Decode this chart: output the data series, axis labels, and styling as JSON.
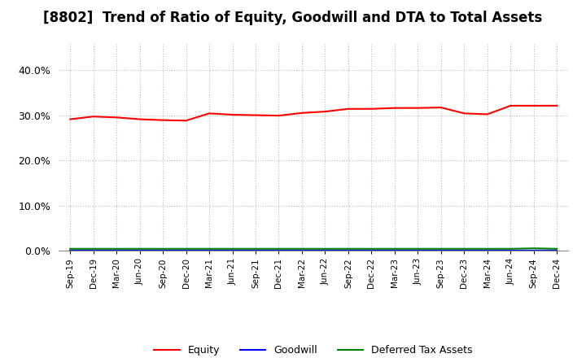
{
  "title": "[8802]  Trend of Ratio of Equity, Goodwill and DTA to Total Assets",
  "x_labels": [
    "Sep-19",
    "Dec-19",
    "Mar-20",
    "Jun-20",
    "Sep-20",
    "Dec-20",
    "Mar-21",
    "Jun-21",
    "Sep-21",
    "Dec-21",
    "Mar-22",
    "Jun-22",
    "Sep-22",
    "Dec-22",
    "Mar-23",
    "Jun-23",
    "Sep-23",
    "Dec-23",
    "Mar-24",
    "Jun-24",
    "Sep-24",
    "Dec-24"
  ],
  "equity": [
    0.291,
    0.297,
    0.295,
    0.291,
    0.289,
    0.288,
    0.304,
    0.301,
    0.3,
    0.299,
    0.305,
    0.308,
    0.314,
    0.314,
    0.316,
    0.316,
    0.317,
    0.304,
    0.302,
    0.321,
    0.321,
    0.321
  ],
  "goodwill": [
    0.0005,
    0.0005,
    0.0005,
    0.0005,
    0.0005,
    0.0005,
    0.0005,
    0.0005,
    0.0005,
    0.0005,
    0.0005,
    0.0005,
    0.0005,
    0.0005,
    0.0005,
    0.0005,
    0.0005,
    0.0005,
    0.0005,
    0.0005,
    0.0005,
    0.0005
  ],
  "dta": [
    0.004,
    0.004,
    0.004,
    0.004,
    0.004,
    0.004,
    0.004,
    0.004,
    0.004,
    0.004,
    0.004,
    0.004,
    0.004,
    0.004,
    0.004,
    0.004,
    0.004,
    0.004,
    0.004,
    0.004,
    0.005,
    0.004
  ],
  "equity_color": "#ff0000",
  "goodwill_color": "#0000ff",
  "dta_color": "#008000",
  "ylim": [
    0.0,
    0.46
  ],
  "yticks": [
    0.0,
    0.1,
    0.2,
    0.3,
    0.4
  ],
  "background_color": "#ffffff",
  "plot_bg_color": "#ffffff",
  "grid_color": "#bbbbbb",
  "title_fontsize": 12,
  "legend_labels": [
    "Equity",
    "Goodwill",
    "Deferred Tax Assets"
  ]
}
